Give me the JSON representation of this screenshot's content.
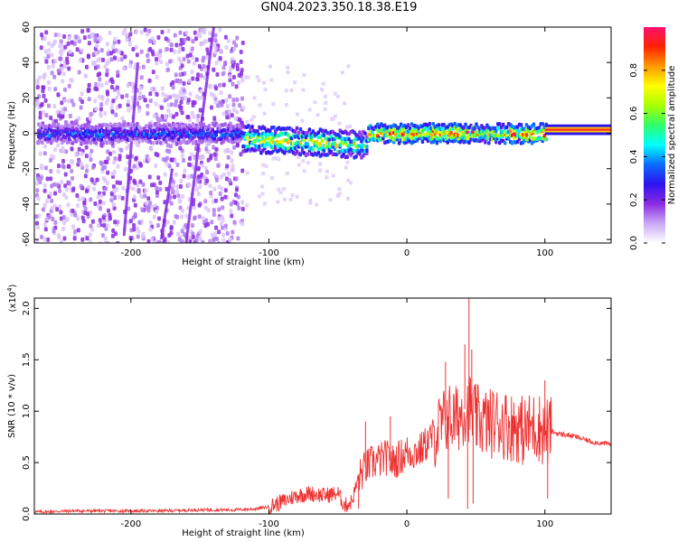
{
  "title": "GN04.2023.350.18.38.E19",
  "chart_data": [
    {
      "type": "heatmap",
      "xlabel": "Height of straight line (km)",
      "ylabel": "Frequency (Hz)",
      "xlim": [
        -270,
        148
      ],
      "ylim": [
        -62,
        60
      ],
      "xticks": [
        -200,
        -100,
        0,
        100
      ],
      "yticks": [
        -60,
        -40,
        -20,
        0,
        20,
        40,
        60
      ],
      "grid": false,
      "colorbar": {
        "label": "Normalized spectral amplitude",
        "range": [
          0,
          1
        ],
        "ticks": [
          "0.0",
          "0.2",
          "0.4",
          "0.6",
          "0.8"
        ],
        "colormap": [
          "#ffffff",
          "#c9a8f6",
          "#8a2be2",
          "#2d12f0",
          "#0a6cff",
          "#00ffff",
          "#2fff6a",
          "#a8ff00",
          "#ffff00",
          "#ff9900",
          "#ff2200",
          "#ff1070"
        ]
      },
      "regions": [
        {
          "x_range": [
            -270,
            -120
          ],
          "description": "broadband noise",
          "amplitude": 0.1
        },
        {
          "x_range": [
            -120,
            100
          ],
          "description": "signal band near 0 Hz",
          "amplitude": 0.6
        },
        {
          "x_range": [
            100,
            148
          ],
          "description": "narrow band near 2 Hz",
          "amplitude": 0.9
        }
      ]
    },
    {
      "type": "line",
      "xlabel": "Height of straight line (km)",
      "ylabel": "SNR (10 * v/v)",
      "yscale_label": "(x10",
      "yscale_exp": "4",
      "xlim": [
        -270,
        148
      ],
      "ylim": [
        0,
        2.1
      ],
      "xticks": [
        -200,
        -100,
        0,
        100
      ],
      "yticks": [
        "0.0",
        "0.5",
        "1.0",
        "1.5",
        "2.0"
      ],
      "ytick_values": [
        0,
        0.5,
        1.0,
        1.5,
        2.0
      ],
      "grid": false,
      "series": [
        {
          "color": "#ee3333",
          "x": [
            -270,
            -240,
            -210,
            -180,
            -150,
            -125,
            -110,
            -100,
            -90,
            -80,
            -70,
            -60,
            -50,
            -45,
            -40,
            -35,
            -30,
            -25,
            -20,
            -15,
            -10,
            -5,
            0,
            5,
            10,
            15,
            20,
            25,
            30,
            35,
            40,
            45,
            50,
            55,
            60,
            65,
            70,
            75,
            80,
            85,
            90,
            95,
            100,
            105,
            110,
            115,
            120,
            125,
            130,
            135,
            140,
            148
          ],
          "y": [
            0.02,
            0.03,
            0.03,
            0.03,
            0.04,
            0.04,
            0.05,
            0.07,
            0.12,
            0.18,
            0.2,
            0.18,
            0.2,
            0.08,
            0.12,
            0.35,
            0.45,
            0.5,
            0.52,
            0.55,
            0.5,
            0.55,
            0.6,
            0.6,
            0.62,
            0.7,
            0.78,
            0.85,
            0.95,
            0.9,
            1.0,
            1.05,
            0.92,
            0.9,
            0.88,
            0.9,
            0.88,
            0.85,
            0.85,
            0.8,
            0.85,
            0.85,
            0.8,
            0.8,
            0.78,
            0.77,
            0.76,
            0.74,
            0.72,
            0.7,
            0.69,
            0.68
          ],
          "spikes": [
            {
              "x": -30,
              "y": 0.9
            },
            {
              "x": -12,
              "y": 0.95
            },
            {
              "x": 28,
              "y": 1.48
            },
            {
              "x": 42,
              "y": 1.65
            },
            {
              "x": 45,
              "y": 2.1
            },
            {
              "x": 47,
              "y": 1.6
            },
            {
              "x": 100,
              "y": 1.3
            },
            {
              "x": 104,
              "y": 1.1
            }
          ],
          "dips": [
            {
              "x": -35,
              "y": 0.05
            },
            {
              "x": 30,
              "y": 0.15
            },
            {
              "x": 44,
              "y": 0.05
            },
            {
              "x": 48,
              "y": 0.1
            },
            {
              "x": 102,
              "y": 0.15
            }
          ]
        }
      ]
    }
  ]
}
